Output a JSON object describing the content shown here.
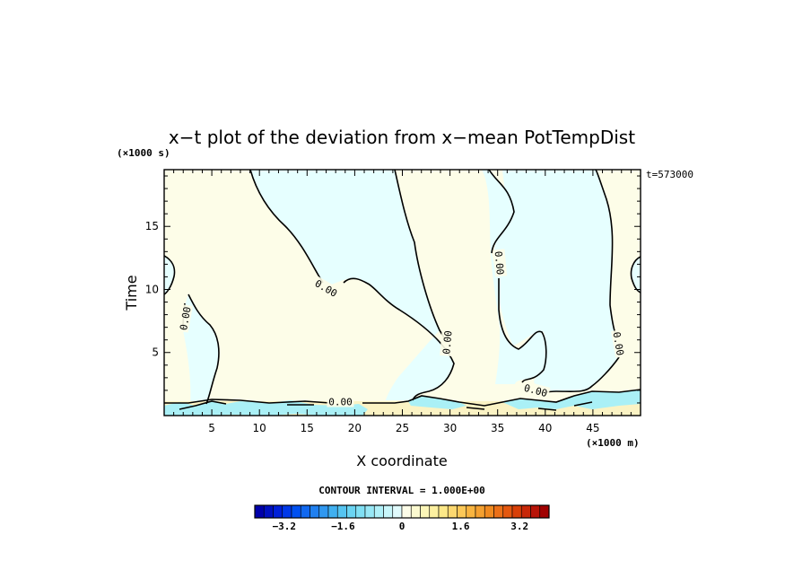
{
  "chart_data": {
    "type": "heatmap",
    "title": "x−t plot of the deviation from x−mean PotTempDist",
    "xlabel": "X coordinate",
    "ylabel": "Time",
    "x_unit": "(×1000 m)",
    "y_unit": "(×1000 s)",
    "timestamp": "t=573000",
    "xlim": [
      0,
      50
    ],
    "ylim": [
      0,
      19.5
    ],
    "x_ticks": [
      5,
      10,
      15,
      20,
      25,
      30,
      35,
      40,
      45
    ],
    "y_ticks": [
      5,
      10,
      15
    ],
    "contour_label": "0.00",
    "contour_labels": [
      {
        "x": 2.2,
        "y": 7.7,
        "text": "0.00",
        "rotate": -80
      },
      {
        "x": 17.0,
        "y": 10.1,
        "text": "0.00",
        "rotate": 30
      },
      {
        "x": 18.5,
        "y": 1.1,
        "text": "0.00",
        "rotate": 0
      },
      {
        "x": 29.7,
        "y": 5.8,
        "text": "0.00",
        "rotate": -85
      },
      {
        "x": 35.2,
        "y": 12.1,
        "text": "0.00",
        "rotate": 85
      },
      {
        "x": 39.0,
        "y": 2.0,
        "text": "0.00",
        "rotate": 15
      },
      {
        "x": 47.7,
        "y": 5.7,
        "text": "0.00",
        "rotate": 80
      }
    ],
    "contour_interval": "CONTOUR INTERVAL = 1.000E+00",
    "colorbar": {
      "min": -4.0,
      "max": 4.0,
      "tick_labels": [
        "−3.2",
        "−1.6",
        "0",
        "1.6",
        "3.2"
      ],
      "tick_values": [
        -3.2,
        -1.6,
        0,
        1.6,
        3.2
      ],
      "colors": [
        "#0000aa",
        "#0010c0",
        "#0020d8",
        "#0038e8",
        "#0050f0",
        "#1068f0",
        "#2080f0",
        "#3098f0",
        "#40b0f0",
        "#55c4f0",
        "#6ad4f2",
        "#80e0f4",
        "#98e8f6",
        "#b0f0f8",
        "#c8f6fa",
        "#e0fafc",
        "#fcfce8",
        "#fcfad0",
        "#fcf6b8",
        "#fcf0a0",
        "#fce888",
        "#fcd870",
        "#fcc858",
        "#f8b440",
        "#f4a030",
        "#f08a20",
        "#ec7018",
        "#e45810",
        "#d84008",
        "#c82808",
        "#b81408",
        "#a00000"
      ]
    },
    "regions": {
      "positive_color": "#fdfde8",
      "negative_color": "#e6ffff",
      "boundary_layer_pos_color": "#fbf3c4",
      "boundary_layer_neg_color": "#aaf0f6"
    }
  }
}
